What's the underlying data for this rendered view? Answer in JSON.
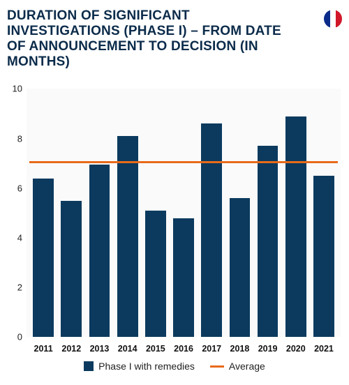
{
  "title": "DURATION OF SIGNIFICANT INVESTIGATIONS (PHASE I) – FROM DATE OF ANNOUNCEMENT TO DECISION (IN MONTHS)",
  "flag": {
    "stripes": [
      "#0b2b8a",
      "#ffffff",
      "#d1172a"
    ]
  },
  "chart": {
    "type": "bar",
    "categories": [
      "2011",
      "2012",
      "2013",
      "2014",
      "2015",
      "2016",
      "2017",
      "2018",
      "2019",
      "2020",
      "2021"
    ],
    "values": [
      6.4,
      5.5,
      6.95,
      8.1,
      5.1,
      4.8,
      8.6,
      5.6,
      7.7,
      8.9,
      6.5
    ],
    "bar_color": "#0b3a5e",
    "average_value": 7.0,
    "average_color": "#e86a1a",
    "ylim": [
      0,
      10
    ],
    "yticks": [
      0,
      2,
      4,
      6,
      8,
      10
    ],
    "ylabel_fontsize": 13,
    "xlabel_fontsize": 12.5,
    "background_color": "#fafafa",
    "bar_width_pct": 74
  },
  "legend": {
    "series_label": "Phase I with remedies",
    "average_label": "Average"
  }
}
